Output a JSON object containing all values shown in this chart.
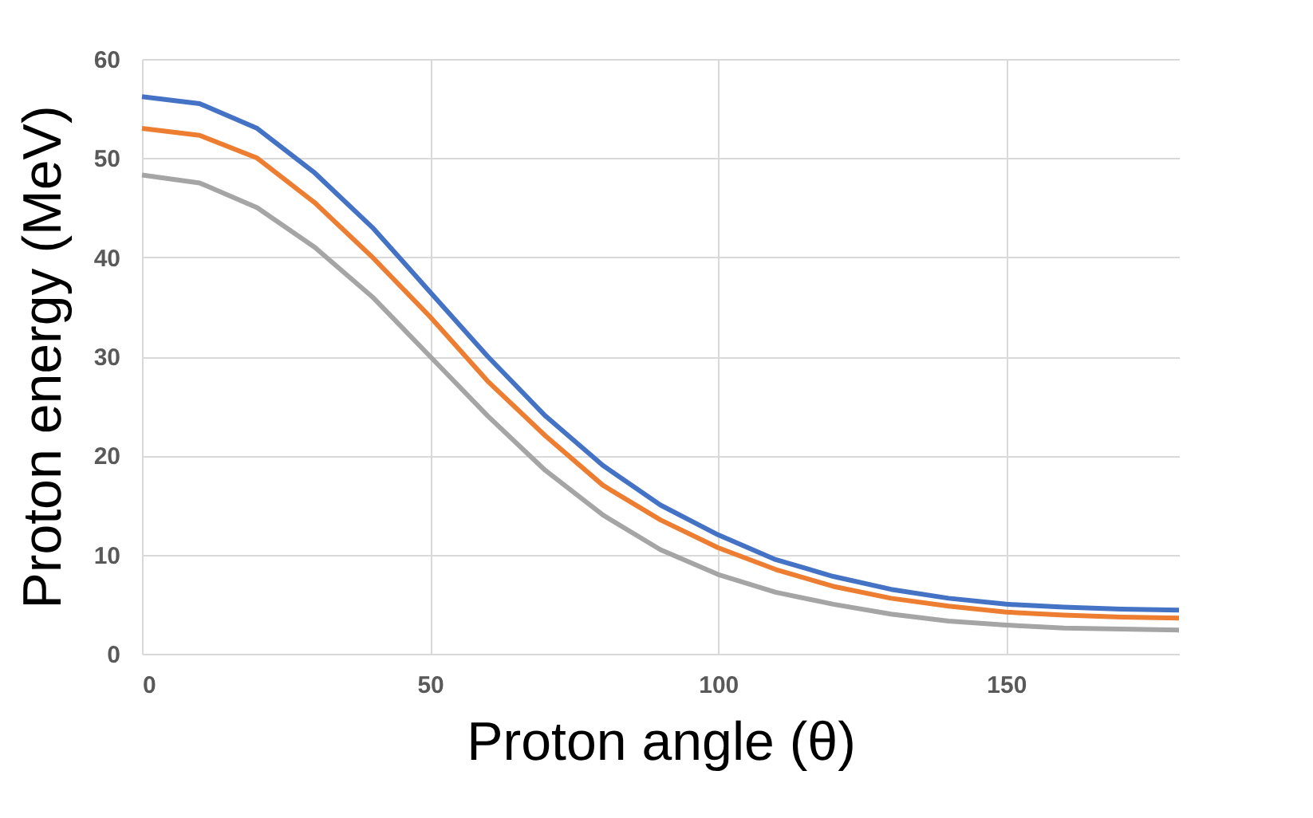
{
  "chart_data": {
    "type": "line",
    "xlabel": "Proton angle (θ)",
    "ylabel": "Proton energy (MeV)",
    "x": [
      0,
      10,
      20,
      30,
      40,
      50,
      60,
      70,
      80,
      90,
      100,
      110,
      120,
      130,
      140,
      150,
      160,
      170,
      180
    ],
    "series": [
      {
        "color": "#4472c4",
        "values": [
          56.2,
          55.5,
          53,
          48.5,
          43,
          36.5,
          30,
          24,
          19,
          15,
          12,
          9.5,
          7.8,
          6.5,
          5.6,
          5,
          4.7,
          4.5,
          4.4
        ]
      },
      {
        "color": "#ed7d31",
        "values": [
          53,
          52.3,
          50,
          45.5,
          40,
          34,
          27.5,
          22,
          17,
          13.5,
          10.7,
          8.5,
          6.8,
          5.6,
          4.8,
          4.2,
          3.9,
          3.7,
          3.6
        ]
      },
      {
        "color": "#a5a5a5",
        "values": [
          48.3,
          47.5,
          45,
          41,
          36,
          30,
          24,
          18.5,
          14,
          10.5,
          8,
          6.2,
          5,
          4,
          3.3,
          2.9,
          2.6,
          2.5,
          2.4
        ]
      }
    ],
    "xlim": [
      0,
      180
    ],
    "xticks": [
      0,
      50,
      100,
      150
    ],
    "ylim": [
      0,
      60
    ],
    "yticks": [
      0,
      10,
      20,
      30,
      40,
      50,
      60
    ],
    "grid": true,
    "legend": false,
    "marker": "none",
    "line_style": "solid"
  }
}
